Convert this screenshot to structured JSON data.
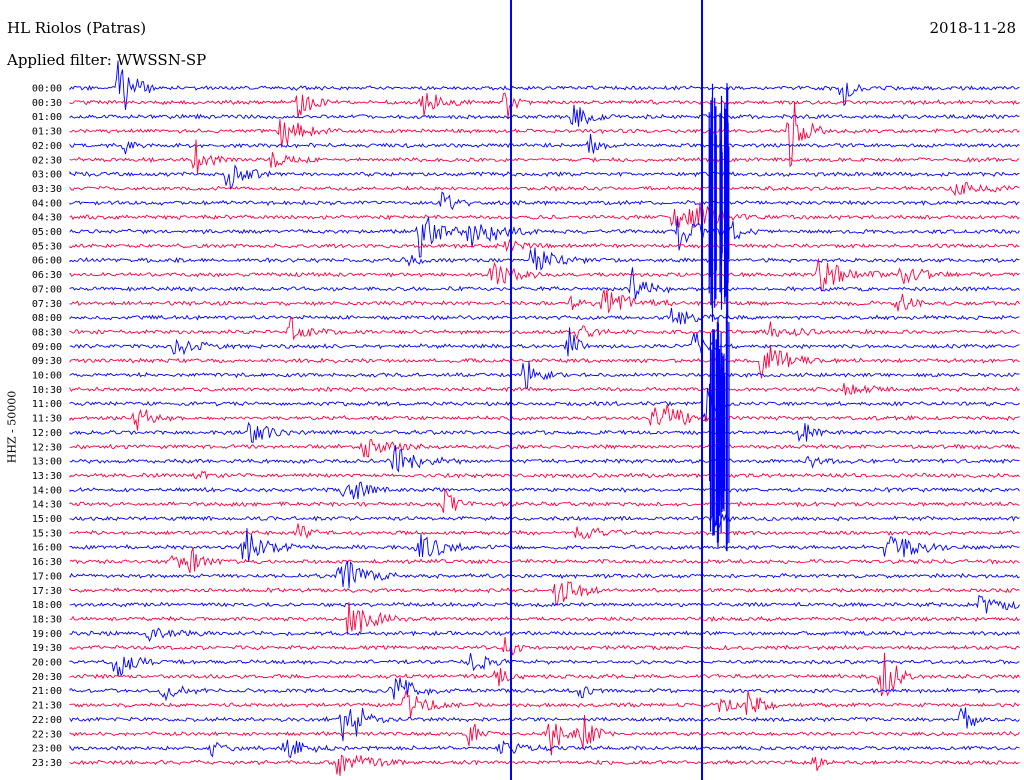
{
  "header": {
    "station": "HL Riolos (Patras)",
    "filter": "Applied filter: WWSSN-SP",
    "date": "2018-11-28"
  },
  "chart_data": {
    "type": "helicorder",
    "channel_label": "HHZ - 50000",
    "row_labels": [
      "00:00",
      "00:30",
      "01:00",
      "01:30",
      "02:00",
      "02:30",
      "03:00",
      "03:30",
      "04:00",
      "04:30",
      "05:00",
      "05:30",
      "06:00",
      "06:30",
      "07:00",
      "07:30",
      "08:00",
      "08:30",
      "09:00",
      "09:30",
      "10:00",
      "10:30",
      "11:00",
      "11:30",
      "12:00",
      "12:30",
      "13:00",
      "13:30",
      "14:00",
      "14:30",
      "15:00",
      "15:30",
      "16:00",
      "16:30",
      "17:00",
      "17:30",
      "18:00",
      "18:30",
      "19:00",
      "19:30",
      "20:00",
      "20:30",
      "21:00",
      "21:30",
      "22:00",
      "22:30",
      "23:00",
      "23:30"
    ],
    "series_colors": [
      "#0000ff",
      "#ff0040"
    ],
    "row_minutes": 30,
    "large_events": [
      {
        "row": "04:00",
        "minute": 20.5
      },
      {
        "row": "12:00",
        "minute": 20.5
      }
    ]
  }
}
